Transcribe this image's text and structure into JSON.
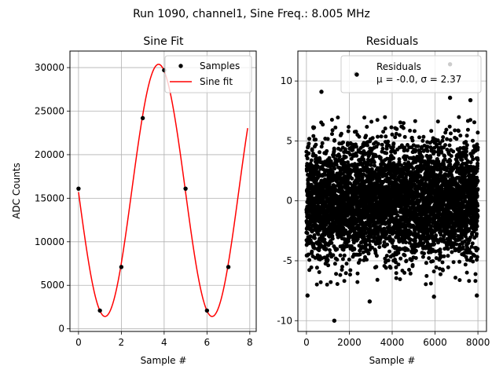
{
  "figure": {
    "suptitle": "Run 1090, channel1, Sine Freq.: 8.005 MHz"
  },
  "chart_data": [
    {
      "type": "scatter+line",
      "title": "Sine Fit",
      "xlabel": "Sample #",
      "ylabel": "ADC Counts",
      "xlim": [
        -0.4,
        8.3
      ],
      "ylim": [
        -300,
        31900
      ],
      "xticks": [
        0,
        2,
        4,
        6,
        8
      ],
      "yticks": [
        0,
        5000,
        10000,
        15000,
        20000,
        25000,
        30000
      ],
      "grid": true,
      "legend_position": "top-right",
      "samples": {
        "name": "Samples",
        "color": "#000000",
        "x": [
          0,
          1,
          2,
          3,
          4,
          5,
          6,
          7
        ],
        "y": [
          16100,
          2100,
          7100,
          24200,
          29700,
          16100,
          2100,
          7100
        ]
      },
      "fit": {
        "name": "Sine fit",
        "color": "#ff0000",
        "model": "offset + amplitude * sin(2*pi*f*x + phase)",
        "offset": 15900,
        "amplitude": 14480,
        "frequency_cycles_per_sample": 0.2,
        "phase_rad": 3.155,
        "x_range": [
          0,
          7.9
        ]
      }
    },
    {
      "type": "scatter",
      "title": "Residuals",
      "xlabel": "Sample #",
      "ylabel": "",
      "xlim": [
        -400,
        8400
      ],
      "ylim": [
        -10.9,
        12.5
      ],
      "xticks": [
        0,
        2000,
        4000,
        6000,
        8000
      ],
      "yticks": [
        -10,
        -5,
        0,
        5,
        10
      ],
      "grid": true,
      "legend_position": "top-right",
      "legend_lines": [
        "Residuals",
        "μ = -0.0, σ = 2.37"
      ],
      "series": {
        "name": "Residuals",
        "color": "#000000",
        "n_points": 8000,
        "mean": 0.0,
        "sigma": 2.37,
        "x_range": [
          0,
          7999
        ]
      },
      "outliers": [
        {
          "x": 700,
          "y": 9.1
        },
        {
          "x": 1300,
          "y": -10.0
        },
        {
          "x": 2300,
          "y": 10.6
        },
        {
          "x": 2950,
          "y": -8.4
        },
        {
          "x": 5950,
          "y": -8.0
        },
        {
          "x": 6700,
          "y": 11.4
        },
        {
          "x": 6700,
          "y": 8.6
        },
        {
          "x": 7650,
          "y": 8.4
        },
        {
          "x": 50,
          "y": -7.9
        },
        {
          "x": 7950,
          "y": -7.9
        }
      ]
    }
  ]
}
